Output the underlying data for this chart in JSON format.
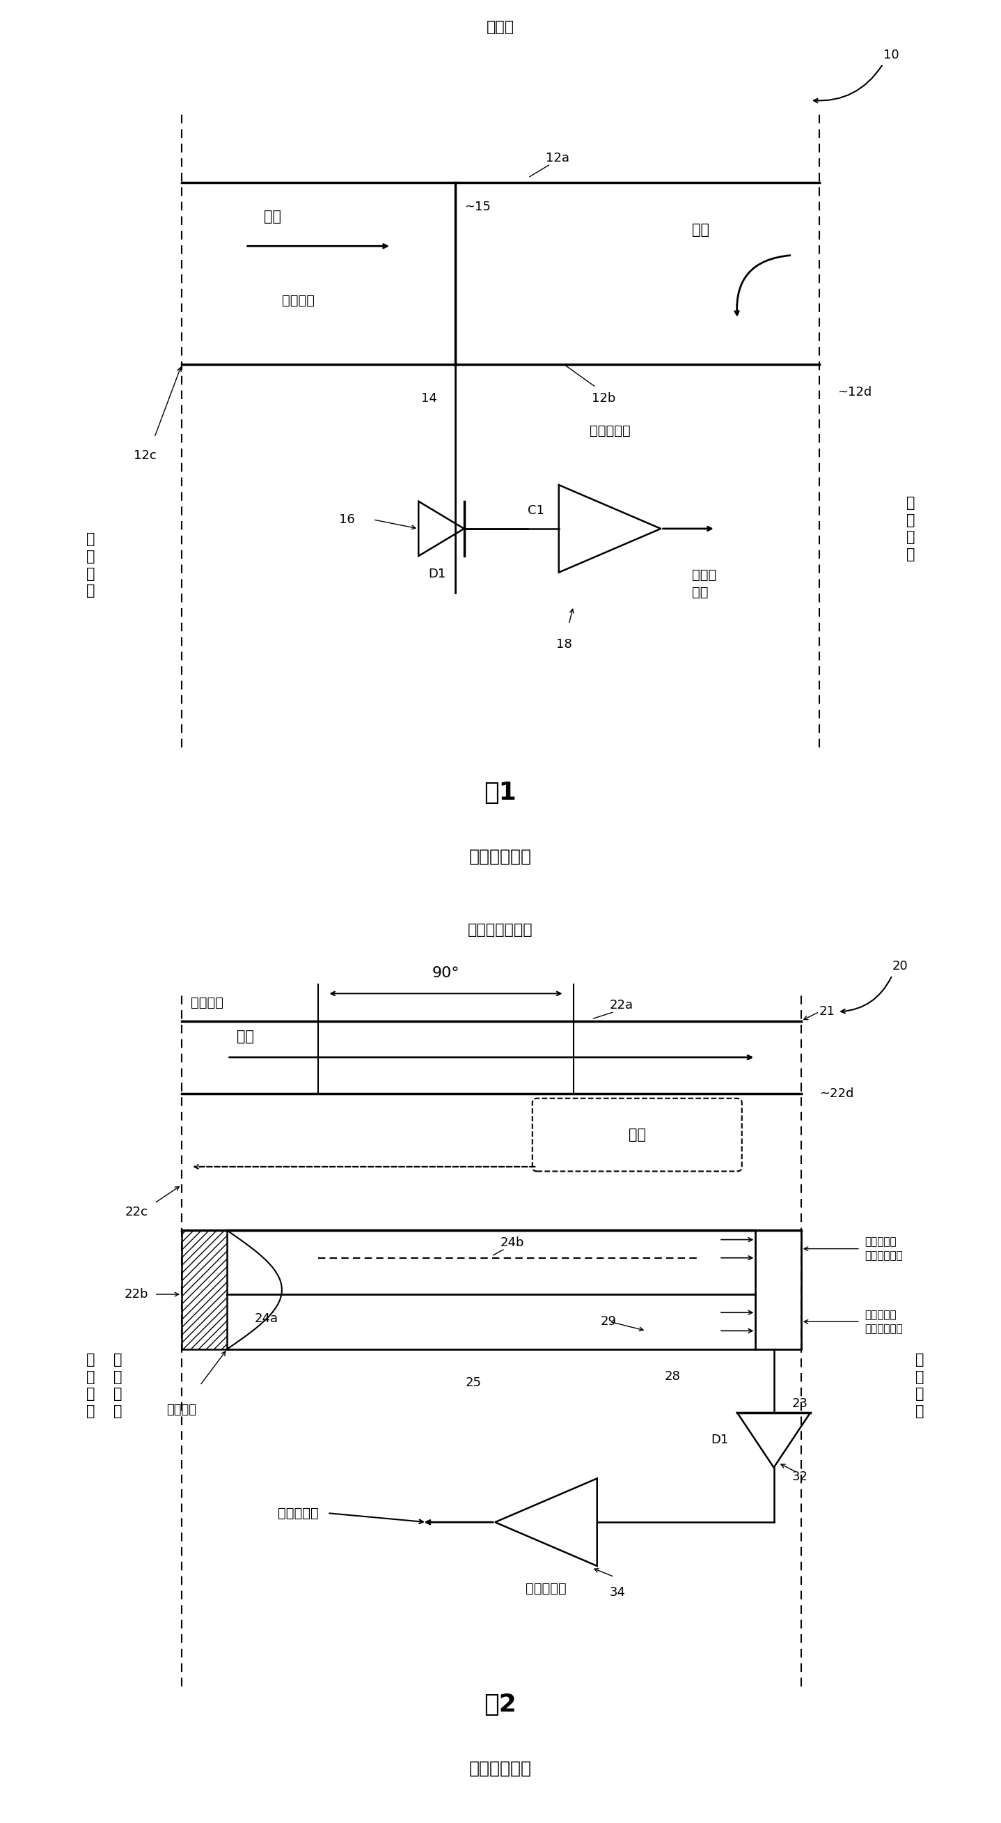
{
  "fig1_title": "单探头",
  "fig1_caption": "图1",
  "fig1_subcaption": "（现有技术）",
  "fig2_title": "方向波导耦合器",
  "fig2_caption": "图2",
  "fig2_subcaption": "（现有技术）",
  "bg_color": "#ffffff",
  "line_color": "#000000"
}
